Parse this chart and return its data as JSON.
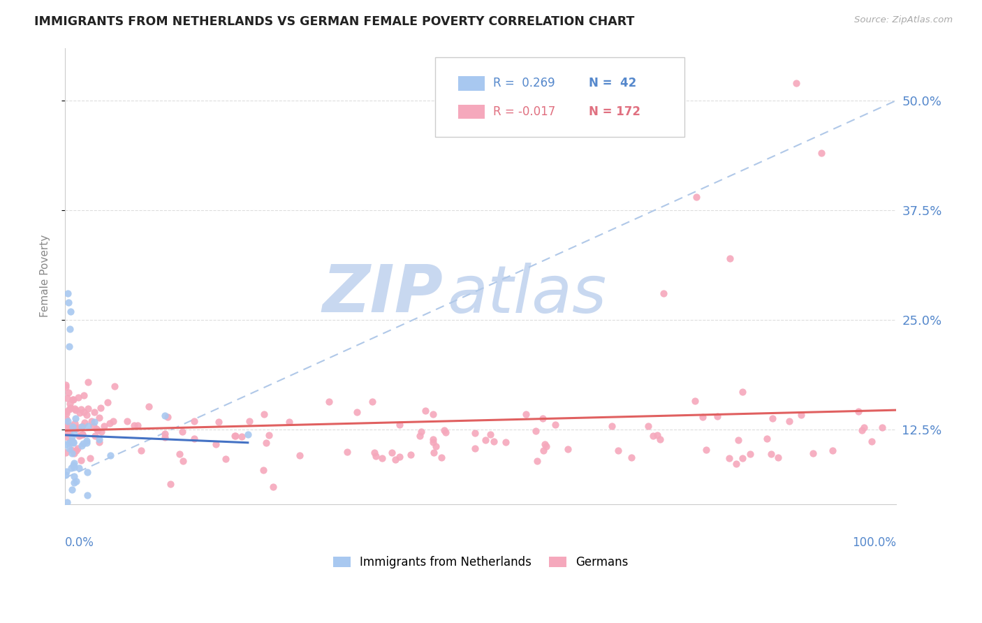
{
  "title": "IMMIGRANTS FROM NETHERLANDS VS GERMAN FEMALE POVERTY CORRELATION CHART",
  "source": "Source: ZipAtlas.com",
  "ylabel": "Female Poverty",
  "ytick_labels": [
    "12.5%",
    "25.0%",
    "37.5%",
    "50.0%"
  ],
  "ytick_values": [
    0.125,
    0.25,
    0.375,
    0.5
  ],
  "xlim": [
    0.0,
    1.0
  ],
  "ylim": [
    0.04,
    0.56
  ],
  "color_blue": "#A8C8F0",
  "color_pink": "#F5A8BC",
  "line_blue": "#4472C4",
  "line_pink": "#E06060",
  "line_dashed_color": "#B0C8E8",
  "watermark_zip_color": "#C8D8F0",
  "watermark_atlas_color": "#C8D8F0",
  "background_color": "#FFFFFF",
  "grid_color": "#DDDDDD",
  "title_color": "#222222",
  "source_color": "#AAAAAA",
  "ylabel_color": "#888888",
  "ytick_color": "#5588CC",
  "xtick_color": "#5588CC"
}
